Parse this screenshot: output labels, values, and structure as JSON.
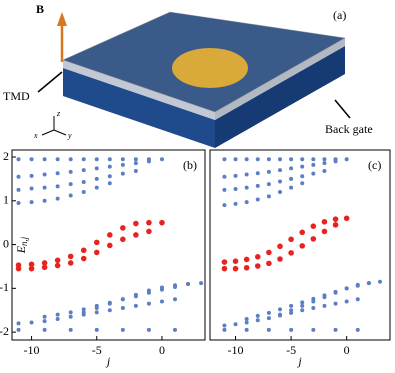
{
  "figure": {
    "panel_label": "(a)",
    "field_label": "B",
    "tmd_label": "TMD",
    "gate_label": "Back gate",
    "axis_x": "x",
    "axis_y": "y",
    "axis_z": "z"
  },
  "chart_data": [
    {
      "type": "scatter",
      "panel_label": "(b)",
      "x_label": "j",
      "y_label": "E",
      "y_label_sub": "n,j",
      "xlim": [
        -11.5,
        3.3
      ],
      "ylim": [
        -2.18,
        2.16
      ],
      "xticks": [
        -10,
        -5,
        0
      ],
      "yticks": [
        -2,
        -1,
        0,
        1,
        2
      ],
      "series": [
        {
          "color": "#5b7fc2",
          "x": [
            -11,
            -10,
            -9,
            -8,
            -7,
            -6,
            -5,
            -4,
            -3,
            -2,
            -1,
            0
          ],
          "values": [
            1.95,
            1.95,
            1.95,
            1.95,
            1.95,
            1.95,
            1.95,
            1.95,
            1.95,
            1.95,
            1.95,
            1.95
          ]
        },
        {
          "color": "#5b7fc2",
          "x": [
            -11,
            -10,
            -9,
            -8,
            -7,
            -6,
            -5,
            -4,
            -3,
            -2,
            -1
          ],
          "values": [
            1.55,
            1.57,
            1.6,
            1.63,
            1.66,
            1.7,
            1.74,
            1.78,
            1.82,
            1.86,
            1.9
          ]
        },
        {
          "color": "#5b7fc2",
          "x": [
            -11,
            -10,
            -9,
            -8,
            -7,
            -6,
            -5,
            -4,
            -3,
            -2
          ],
          "values": [
            1.25,
            1.28,
            1.3,
            1.33,
            1.38,
            1.43,
            1.5,
            1.56,
            1.62,
            1.68
          ]
        },
        {
          "color": "#5b7fc2",
          "x": [
            -11,
            -10,
            -9,
            -8,
            -7,
            -6,
            -5,
            -4
          ],
          "values": [
            0.95,
            0.97,
            1.0,
            1.05,
            1.12,
            1.2,
            1.3,
            1.4
          ]
        },
        {
          "color": "#5b7fc2",
          "x": [
            -11,
            -9,
            -7,
            -5,
            -3,
            -1,
            1
          ],
          "values": [
            -1.95,
            -1.95,
            -1.95,
            -1.95,
            -1.95,
            -1.95,
            -1.95
          ]
        },
        {
          "color": "#5b7fc2",
          "x": [
            -11,
            -10,
            -9,
            -8,
            -7,
            -6,
            -5,
            -4,
            -3,
            -2,
            -1,
            0,
            1
          ],
          "values": [
            -1.8,
            -1.78,
            -1.75,
            -1.7,
            -1.65,
            -1.6,
            -1.55,
            -1.5,
            -1.45,
            -1.4,
            -1.35,
            -1.3,
            -1.25
          ]
        },
        {
          "color": "#5b7fc2",
          "x": [
            -9,
            -8,
            -7,
            -6,
            -5,
            -4,
            -3,
            -2,
            -1,
            0,
            1,
            2
          ],
          "values": [
            -1.65,
            -1.6,
            -1.55,
            -1.48,
            -1.4,
            -1.33,
            -1.25,
            -1.18,
            -1.1,
            -1.03,
            -0.97,
            -0.9
          ]
        },
        {
          "color": "#5b7fc2",
          "x": [
            -6,
            -5,
            -4,
            -3,
            -2,
            -1,
            0,
            1,
            2,
            3
          ],
          "values": [
            -1.55,
            -1.45,
            -1.35,
            -1.25,
            -1.15,
            -1.05,
            -0.98,
            -0.93,
            -0.9,
            -0.88
          ]
        },
        {
          "color": "#e8231f",
          "x": [
            -11,
            -10,
            -9,
            -8,
            -7,
            -6,
            -5,
            -4,
            -3,
            -2,
            -1,
            0
          ],
          "values": [
            -0.47,
            -0.45,
            -0.42,
            -0.36,
            -0.27,
            -0.13,
            0.05,
            0.22,
            0.38,
            0.48,
            0.5,
            0.5
          ]
        },
        {
          "color": "#e8231f",
          "x": [
            -11,
            -10,
            -9,
            -8,
            -7,
            -6,
            -5,
            -4,
            -3,
            -2,
            -1
          ],
          "values": [
            -0.55,
            -0.55,
            -0.52,
            -0.48,
            -0.42,
            -0.32,
            -0.18,
            -0.02,
            0.12,
            0.22,
            0.3
          ]
        }
      ]
    },
    {
      "type": "scatter",
      "panel_label": "(c)",
      "x_label": "j",
      "xlim": [
        -12.3,
        3.9
      ],
      "ylim": [
        -2.18,
        2.16
      ],
      "xticks": [
        -10,
        -5,
        0
      ],
      "series": [
        {
          "color": "#5b7fc2",
          "x": [
            -11,
            -10,
            -9,
            -8,
            -7,
            -6,
            -5,
            -4,
            -3,
            -2,
            -1,
            0
          ],
          "values": [
            1.95,
            1.95,
            1.95,
            1.95,
            1.95,
            1.95,
            1.95,
            1.95,
            1.95,
            1.95,
            1.95,
            1.95
          ]
        },
        {
          "color": "#5b7fc2",
          "x": [
            -11,
            -10,
            -9,
            -8,
            -7,
            -6,
            -5,
            -4,
            -3,
            -2,
            -1
          ],
          "values": [
            1.55,
            1.57,
            1.6,
            1.63,
            1.66,
            1.7,
            1.74,
            1.78,
            1.82,
            1.86,
            1.9
          ]
        },
        {
          "color": "#5b7fc2",
          "x": [
            -11,
            -10,
            -9,
            -8,
            -7,
            -6,
            -5,
            -4,
            -3,
            -2
          ],
          "values": [
            1.25,
            1.27,
            1.3,
            1.34,
            1.38,
            1.44,
            1.5,
            1.56,
            1.62,
            1.68
          ]
        },
        {
          "color": "#5b7fc2",
          "x": [
            -11,
            -10,
            -9,
            -8,
            -7,
            -6,
            -5,
            -4
          ],
          "values": [
            0.9,
            0.93,
            0.97,
            1.03,
            1.1,
            1.2,
            1.3,
            1.4
          ]
        },
        {
          "color": "#5b7fc2",
          "x": [
            -11,
            -9,
            -7,
            -5,
            -3,
            -1,
            1
          ],
          "values": [
            -1.95,
            -1.95,
            -1.95,
            -1.95,
            -1.95,
            -1.95,
            -1.95
          ]
        },
        {
          "color": "#5b7fc2",
          "x": [
            -11,
            -10,
            -9,
            -8,
            -7,
            -6,
            -5,
            -4,
            -3,
            -2,
            -1,
            0,
            1
          ],
          "values": [
            -1.85,
            -1.82,
            -1.78,
            -1.73,
            -1.68,
            -1.62,
            -1.56,
            -1.5,
            -1.45,
            -1.4,
            -1.35,
            -1.3,
            -1.25
          ]
        },
        {
          "color": "#5b7fc2",
          "x": [
            -9,
            -8,
            -7,
            -6,
            -5,
            -4,
            -3,
            -2,
            -1,
            0,
            1,
            2
          ],
          "values": [
            -1.7,
            -1.63,
            -1.56,
            -1.48,
            -1.4,
            -1.32,
            -1.24,
            -1.16,
            -1.08,
            -1.0,
            -0.94,
            -0.88
          ]
        },
        {
          "color": "#5b7fc2",
          "x": [
            -6,
            -5,
            -4,
            -3,
            -2,
            -1,
            0,
            1,
            2,
            3
          ],
          "values": [
            -1.6,
            -1.5,
            -1.4,
            -1.3,
            -1.2,
            -1.1,
            -1.0,
            -0.92,
            -0.88,
            -0.85
          ]
        },
        {
          "color": "#e8231f",
          "x": [
            -11,
            -10,
            -9,
            -8,
            -7,
            -6,
            -5,
            -4,
            -3,
            -2,
            -1,
            0
          ],
          "values": [
            -0.4,
            -0.38,
            -0.34,
            -0.28,
            -0.18,
            -0.04,
            0.12,
            0.28,
            0.42,
            0.52,
            0.58,
            0.6
          ]
        },
        {
          "color": "#e8231f",
          "x": [
            -11,
            -10,
            -9,
            -8,
            -7,
            -6,
            -5,
            -4,
            -3,
            -2,
            -1
          ],
          "values": [
            -0.55,
            -0.55,
            -0.53,
            -0.49,
            -0.43,
            -0.33,
            -0.19,
            -0.03,
            0.13,
            0.3,
            0.45
          ]
        }
      ]
    }
  ]
}
